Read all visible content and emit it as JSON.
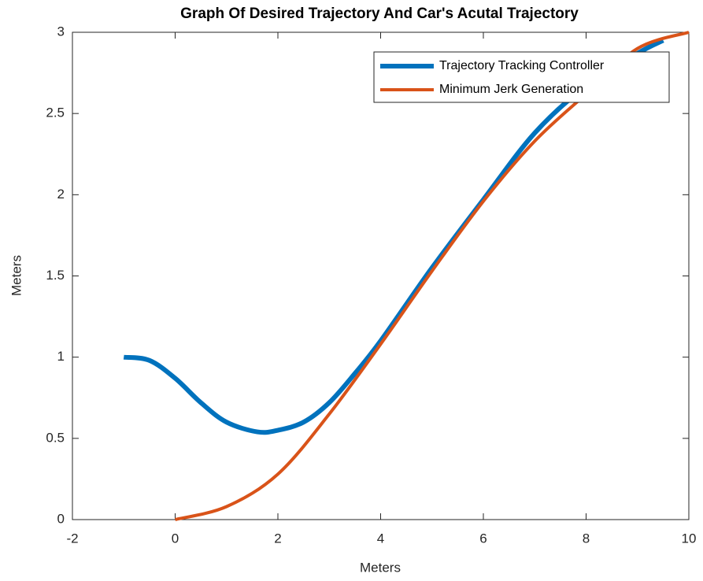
{
  "chart_data": {
    "type": "line",
    "title": "Graph Of Desired Trajectory And Car's Acutal Trajectory",
    "xlabel": "Meters",
    "ylabel": "Meters",
    "xlim": [
      -2,
      10
    ],
    "ylim": [
      0,
      3
    ],
    "xticks": [
      -2,
      0,
      2,
      4,
      6,
      8,
      10
    ],
    "yticks": [
      0,
      0.5,
      1,
      1.5,
      2,
      2.5,
      3
    ],
    "legend": "upper right",
    "grid": false,
    "series": [
      {
        "name": "Trajectory Tracking Controller",
        "color": "#0072BD",
        "x": [
          -1,
          -0.5,
          0,
          0.5,
          1,
          1.6,
          2,
          2.5,
          3,
          3.5,
          4,
          5,
          6,
          7,
          8,
          9,
          9.5
        ],
        "values": [
          1,
          0.98,
          0.87,
          0.72,
          0.6,
          0.54,
          0.55,
          0.6,
          0.72,
          0.9,
          1.1,
          1.55,
          1.97,
          2.38,
          2.67,
          2.87,
          2.95
        ]
      },
      {
        "name": "Minimum Jerk Generation",
        "color": "#D95319",
        "x": [
          0,
          1,
          2,
          3,
          4,
          5,
          6,
          7,
          8,
          9,
          10
        ],
        "values": [
          0,
          0.08,
          0.28,
          0.65,
          1.08,
          1.53,
          1.96,
          2.33,
          2.62,
          2.9,
          3
        ]
      }
    ]
  }
}
